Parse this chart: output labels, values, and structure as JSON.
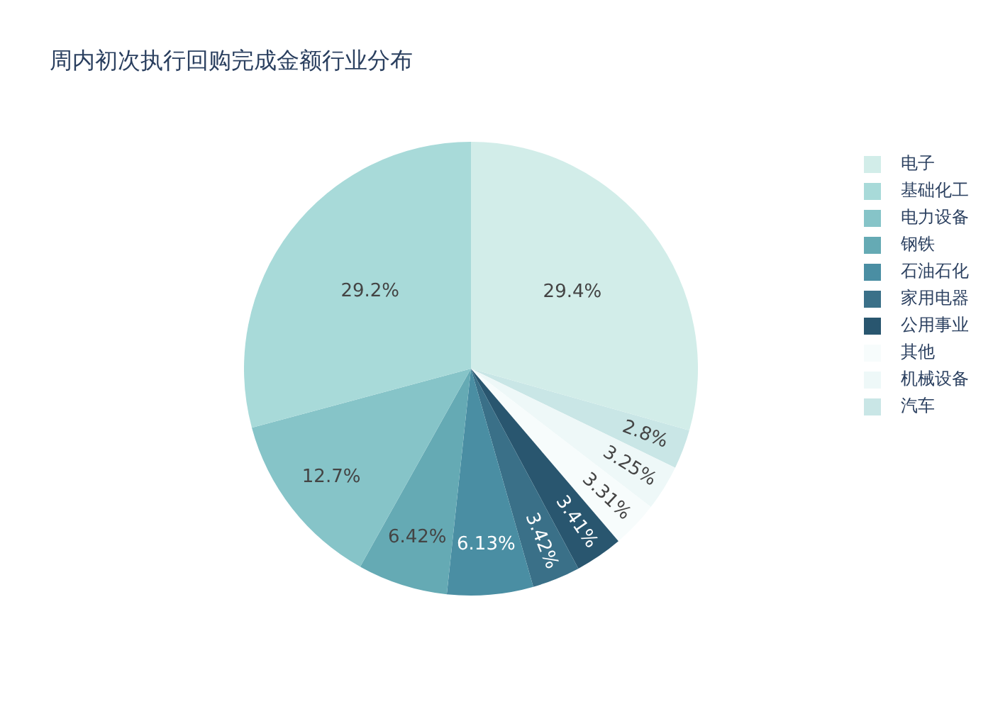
{
  "chart_data": {
    "type": "pie",
    "title": "周内初次执行回购完成金额行业分布",
    "categories": [
      "电子",
      "基础化工",
      "电力设备",
      "钢铁",
      "石油石化",
      "家用电器",
      "公用事业",
      "其他",
      "机械设备",
      "汽车"
    ],
    "values": [
      29.4,
      29.2,
      12.7,
      6.42,
      6.13,
      3.42,
      3.41,
      3.31,
      3.25,
      2.8
    ],
    "value_labels": [
      "29.4%",
      "29.2%",
      "12.7%",
      "6.42%",
      "6.13%",
      "3.42%",
      "3.41%",
      "3.31%",
      "3.25%",
      "2.8%"
    ],
    "colors": [
      "#d2ede9",
      "#a8dad9",
      "#86c4c8",
      "#65aab4",
      "#4a8ea3",
      "#3a7088",
      "#29566f",
      "#f7fcfc",
      "#eef8f8",
      "#c9e6e6"
    ],
    "legend": "right"
  }
}
